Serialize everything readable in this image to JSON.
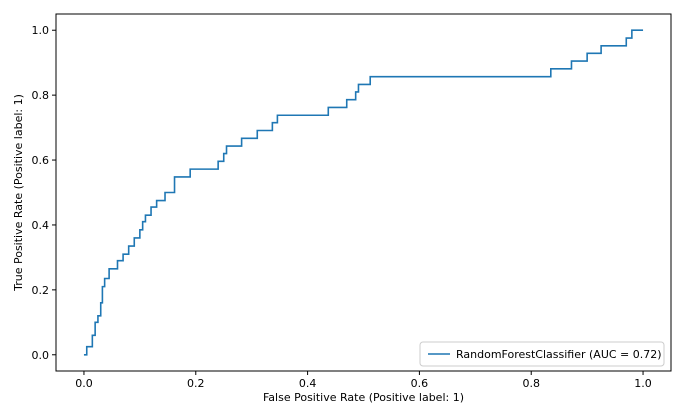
{
  "chart_data": {
    "type": "line",
    "xlabel": "False Positive Rate (Positive label: 1)",
    "ylabel": "True Positive Rate (Positive label: 1)",
    "xlim": [
      -0.05,
      1.05
    ],
    "ylim": [
      -0.05,
      1.05
    ],
    "xticks": [
      0.0,
      0.2,
      0.4,
      0.6,
      0.8,
      1.0
    ],
    "yticks": [
      0.0,
      0.2,
      0.4,
      0.6,
      0.8,
      1.0
    ],
    "xtick_labels": [
      "0.0",
      "0.2",
      "0.4",
      "0.6",
      "0.8",
      "1.0"
    ],
    "ytick_labels": [
      "0.0",
      "0.2",
      "0.4",
      "0.6",
      "0.8",
      "1.0"
    ],
    "grid": false,
    "legend_position": "lower-right",
    "series": [
      {
        "name": "RandomForestClassifier (AUC = 0.72)",
        "color": "#1f77b4",
        "points": [
          [
            0.0,
            0.0
          ],
          [
            0.005,
            0.0
          ],
          [
            0.005,
            0.025
          ],
          [
            0.015,
            0.025
          ],
          [
            0.015,
            0.06
          ],
          [
            0.02,
            0.06
          ],
          [
            0.02,
            0.1
          ],
          [
            0.025,
            0.1
          ],
          [
            0.025,
            0.12
          ],
          [
            0.03,
            0.12
          ],
          [
            0.03,
            0.16
          ],
          [
            0.033,
            0.16
          ],
          [
            0.033,
            0.21
          ],
          [
            0.037,
            0.21
          ],
          [
            0.037,
            0.235
          ],
          [
            0.045,
            0.235
          ],
          [
            0.045,
            0.265
          ],
          [
            0.06,
            0.265
          ],
          [
            0.06,
            0.29
          ],
          [
            0.07,
            0.29
          ],
          [
            0.07,
            0.31
          ],
          [
            0.08,
            0.31
          ],
          [
            0.08,
            0.335
          ],
          [
            0.09,
            0.335
          ],
          [
            0.09,
            0.36
          ],
          [
            0.1,
            0.36
          ],
          [
            0.1,
            0.385
          ],
          [
            0.105,
            0.385
          ],
          [
            0.105,
            0.41
          ],
          [
            0.11,
            0.41
          ],
          [
            0.11,
            0.43
          ],
          [
            0.12,
            0.43
          ],
          [
            0.12,
            0.455
          ],
          [
            0.13,
            0.455
          ],
          [
            0.13,
            0.475
          ],
          [
            0.145,
            0.475
          ],
          [
            0.145,
            0.5
          ],
          [
            0.162,
            0.5
          ],
          [
            0.162,
            0.548
          ],
          [
            0.19,
            0.548
          ],
          [
            0.19,
            0.572
          ],
          [
            0.24,
            0.572
          ],
          [
            0.24,
            0.596
          ],
          [
            0.25,
            0.596
          ],
          [
            0.25,
            0.62
          ],
          [
            0.255,
            0.62
          ],
          [
            0.255,
            0.643
          ],
          [
            0.282,
            0.643
          ],
          [
            0.282,
            0.667
          ],
          [
            0.31,
            0.667
          ],
          [
            0.31,
            0.691
          ],
          [
            0.337,
            0.691
          ],
          [
            0.337,
            0.715
          ],
          [
            0.346,
            0.715
          ],
          [
            0.346,
            0.738
          ],
          [
            0.437,
            0.738
          ],
          [
            0.437,
            0.762
          ],
          [
            0.47,
            0.762
          ],
          [
            0.47,
            0.786
          ],
          [
            0.486,
            0.786
          ],
          [
            0.486,
            0.81
          ],
          [
            0.491,
            0.81
          ],
          [
            0.491,
            0.833
          ],
          [
            0.512,
            0.833
          ],
          [
            0.512,
            0.857
          ],
          [
            0.835,
            0.857
          ],
          [
            0.835,
            0.881
          ],
          [
            0.872,
            0.881
          ],
          [
            0.872,
            0.905
          ],
          [
            0.9,
            0.905
          ],
          [
            0.9,
            0.929
          ],
          [
            0.925,
            0.929
          ],
          [
            0.925,
            0.952
          ],
          [
            0.97,
            0.952
          ],
          [
            0.97,
            0.976
          ],
          [
            0.98,
            0.976
          ],
          [
            0.98,
            1.0
          ],
          [
            1.0,
            1.0
          ]
        ]
      }
    ]
  }
}
